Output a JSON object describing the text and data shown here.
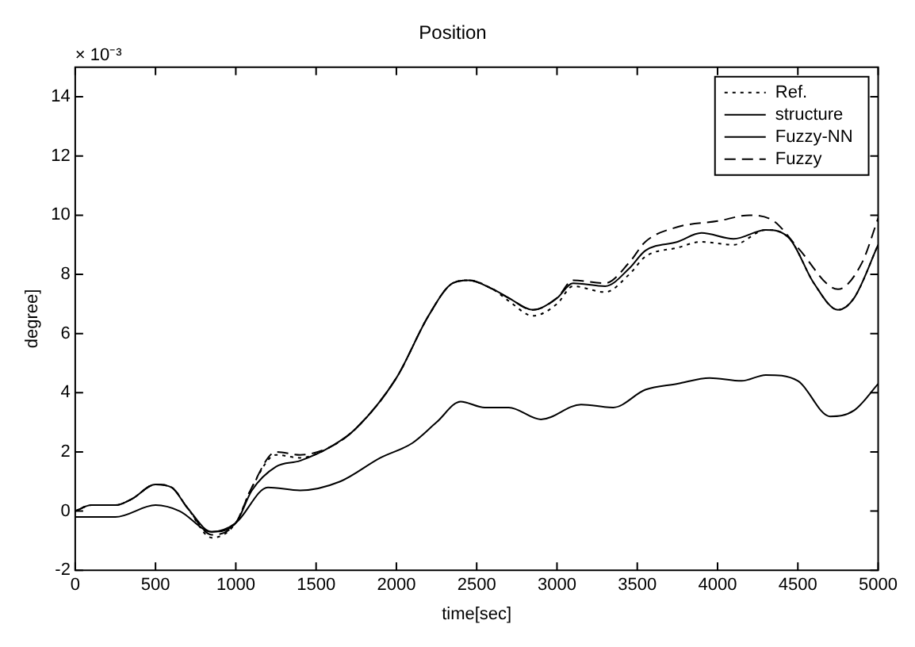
{
  "chart_data": {
    "type": "line",
    "title": "Position",
    "xlabel": "time[sec]",
    "ylabel": "degree]",
    "annotations": [
      "× 10⁻³"
    ],
    "xlim": [
      0,
      5000
    ],
    "xticks": [
      0,
      500,
      1000,
      1500,
      2000,
      2500,
      3000,
      3500,
      4000,
      4500,
      5000
    ],
    "ylim": [
      -2,
      15
    ],
    "yticks": [
      -2,
      0,
      2,
      4,
      6,
      8,
      10,
      12,
      14
    ],
    "grid": false,
    "legend": "top right",
    "marker": "none",
    "series": [
      {
        "name": "Ref.",
        "color": "#000000",
        "line_style": "dotted",
        "x": [
          0,
          100,
          250,
          350,
          500,
          600,
          700,
          850,
          1000,
          1100,
          1250,
          1400,
          1600,
          1750,
          2000,
          2200,
          2350,
          2450,
          2600,
          2700,
          2850,
          3000,
          3100,
          3300,
          3450,
          3550,
          3750,
          3900,
          4100,
          4300,
          4450,
          4600,
          4750,
          4850,
          5000
        ],
        "values": [
          0,
          0.2,
          0.2,
          0.4,
          0.9,
          0.8,
          0.1,
          -0.9,
          -0.4,
          0.8,
          1.9,
          1.8,
          2.2,
          2.8,
          4.5,
          6.6,
          7.7,
          7.8,
          7.5,
          7.1,
          6.6,
          7.0,
          7.6,
          7.4,
          8.0,
          8.6,
          8.9,
          9.1,
          9.0,
          9.5,
          9.2,
          7.7,
          6.8,
          7.2,
          9.0
        ]
      },
      {
        "name": "structure",
        "color": "#000000",
        "line_style": "solid",
        "x": [
          0,
          250,
          500,
          650,
          850,
          1000,
          1200,
          1400,
          1650,
          1900,
          2100,
          2250,
          2400,
          2550,
          2700,
          2900,
          3150,
          3350,
          3550,
          3750,
          3950,
          4150,
          4300,
          4500,
          4700,
          4850,
          5000
        ],
        "values": [
          -0.2,
          -0.2,
          0.2,
          0.0,
          -0.7,
          -0.4,
          0.8,
          0.7,
          1.0,
          1.8,
          2.3,
          3.0,
          3.7,
          3.5,
          3.5,
          3.1,
          3.6,
          3.5,
          4.1,
          4.3,
          4.5,
          4.4,
          4.6,
          4.4,
          3.2,
          3.4,
          4.3
        ]
      },
      {
        "name": "Fuzzy-NN",
        "color": "#000000",
        "line_style": "solid",
        "x": [
          0,
          100,
          250,
          350,
          500,
          600,
          700,
          850,
          1000,
          1100,
          1250,
          1400,
          1600,
          1750,
          2000,
          2200,
          2350,
          2450,
          2600,
          2700,
          2850,
          3000,
          3100,
          3300,
          3450,
          3550,
          3750,
          3900,
          4100,
          4300,
          4450,
          4600,
          4750,
          4850,
          5000
        ],
        "values": [
          0,
          0.2,
          0.2,
          0.4,
          0.9,
          0.8,
          0.1,
          -0.7,
          -0.4,
          0.7,
          1.5,
          1.7,
          2.2,
          2.8,
          4.5,
          6.6,
          7.7,
          7.8,
          7.5,
          7.2,
          6.8,
          7.2,
          7.7,
          7.6,
          8.2,
          8.8,
          9.1,
          9.4,
          9.2,
          9.5,
          9.2,
          7.7,
          6.8,
          7.2,
          9.0
        ]
      },
      {
        "name": "Fuzzy",
        "color": "#000000",
        "line_style": "dashed",
        "x": [
          0,
          100,
          250,
          350,
          500,
          600,
          700,
          850,
          1000,
          1100,
          1250,
          1400,
          1600,
          1750,
          2000,
          2200,
          2350,
          2450,
          2600,
          2700,
          2850,
          3000,
          3100,
          3300,
          3450,
          3550,
          3750,
          4000,
          4200,
          4350,
          4500,
          4750,
          4900,
          5000
        ],
        "values": [
          0,
          0.2,
          0.2,
          0.4,
          0.9,
          0.8,
          0.1,
          -0.8,
          -0.4,
          0.8,
          2.0,
          1.9,
          2.2,
          2.8,
          4.5,
          6.6,
          7.7,
          7.8,
          7.5,
          7.2,
          6.8,
          7.2,
          7.8,
          7.7,
          8.4,
          9.1,
          9.6,
          9.8,
          10.0,
          9.8,
          8.9,
          7.5,
          8.4,
          9.9
        ]
      }
    ]
  }
}
